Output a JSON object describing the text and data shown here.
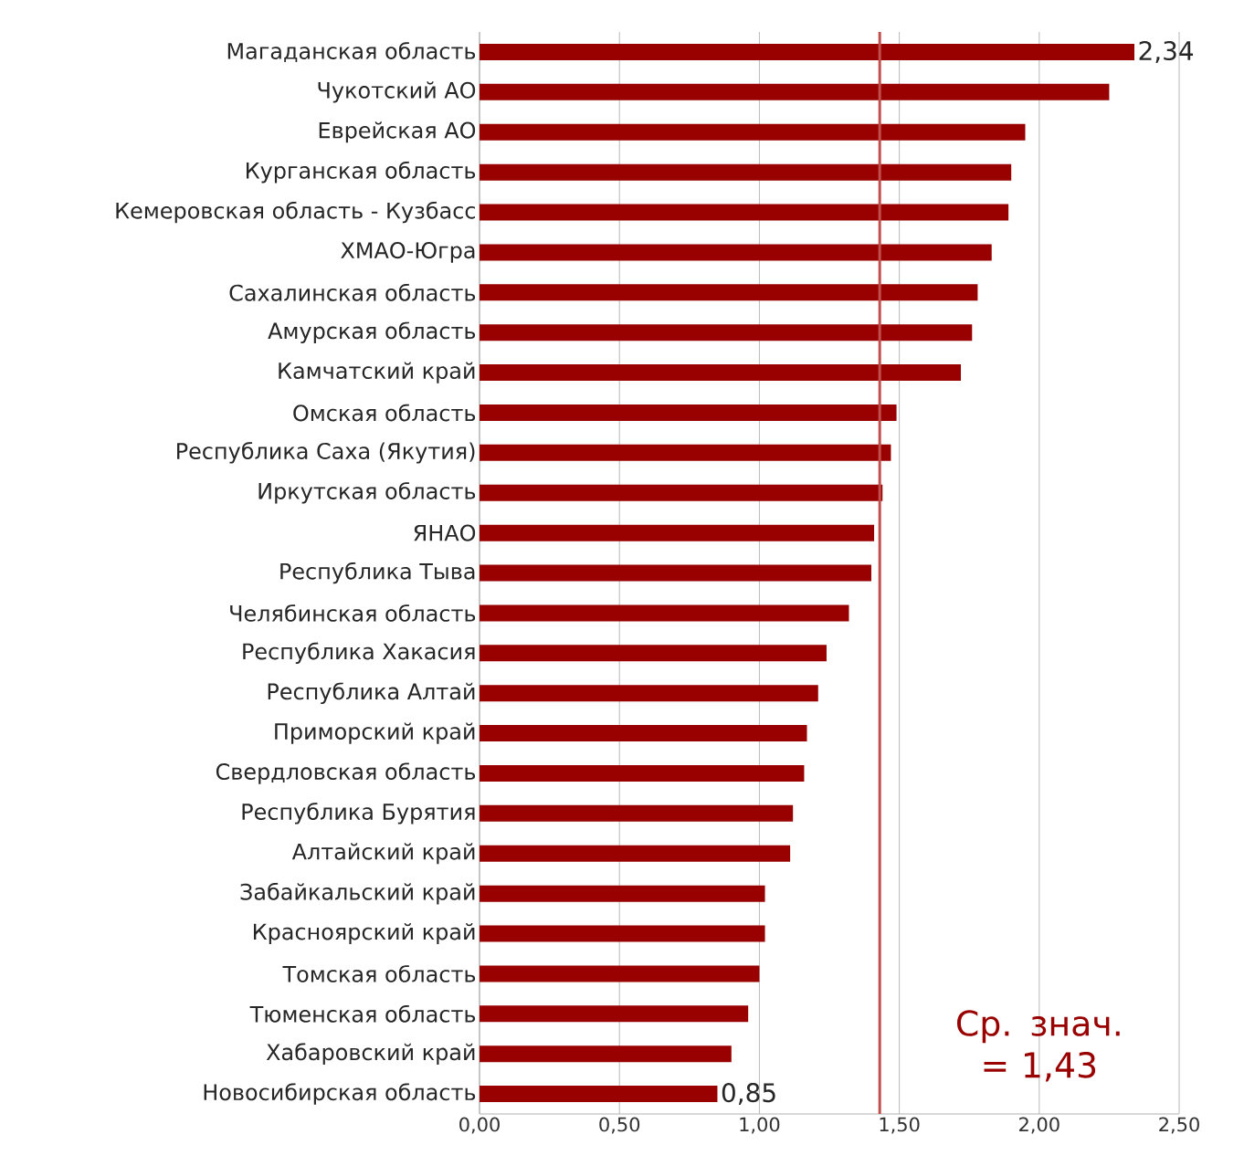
{
  "chart_data": {
    "type": "bar",
    "orientation": "horizontal",
    "categories": [
      "Магаданская область",
      "Чукотский АО",
      "Еврейская АО",
      "Курганская область",
      "Кемеровская область - Кузбасс",
      "ХМАО-Югра",
      "Сахалинская область",
      "Амурская область",
      "Камчатский край",
      "Омская область",
      "Республика Саха (Якутия)",
      "Иркутская область",
      "ЯНАО",
      "Республика Тыва",
      "Челябинская область",
      "Республика Хакасия",
      "Республика Алтай",
      "Приморский край",
      "Свердловская область",
      "Республика Бурятия",
      "Алтайский край",
      "Забайкальский край",
      "Красноярский край",
      "Томская область",
      "Тюменская область",
      "Хабаровский край",
      "Новосибирская область"
    ],
    "values": [
      2.34,
      2.25,
      1.95,
      1.9,
      1.89,
      1.83,
      1.78,
      1.76,
      1.72,
      1.49,
      1.47,
      1.44,
      1.41,
      1.4,
      1.32,
      1.24,
      1.21,
      1.17,
      1.16,
      1.12,
      1.11,
      1.02,
      1.02,
      1.0,
      0.96,
      0.9,
      0.85
    ],
    "value_labels": [
      "2,34",
      null,
      null,
      null,
      null,
      null,
      null,
      null,
      null,
      null,
      null,
      null,
      null,
      null,
      null,
      null,
      null,
      null,
      null,
      null,
      null,
      null,
      null,
      null,
      null,
      null,
      "0,85"
    ],
    "color": "#990000",
    "xlim": [
      0,
      2.5
    ],
    "xticks": [
      {
        "value": 0,
        "label": "0,00"
      },
      {
        "value": 0.5,
        "label": "0,50"
      },
      {
        "value": 1,
        "label": "1,00"
      },
      {
        "value": 1.5,
        "label": "1,50"
      },
      {
        "value": 2,
        "label": "2,00"
      },
      {
        "value": 2.5,
        "label": "2,50"
      }
    ],
    "grid": "x",
    "ref_lines": [
      {
        "axis": "x",
        "value": 1.43,
        "label": "Ср. знач. = 1,43",
        "color": "#c0504d"
      }
    ]
  }
}
